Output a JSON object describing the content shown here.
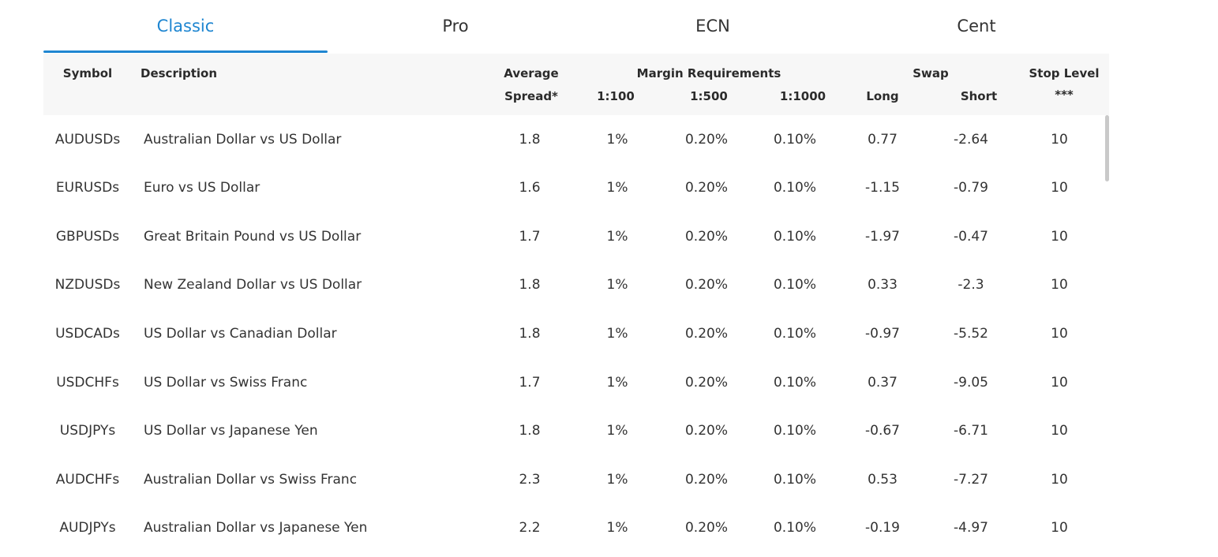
{
  "tabs": [
    "Classic",
    "Pro",
    "ECN",
    "Cent"
  ],
  "active_tab": "Classic",
  "header": {
    "symbol": "Symbol",
    "description": "Description",
    "average": "Average",
    "spread": "Spread*",
    "margin": "Margin Requirements",
    "m100": "1:100",
    "m500": "1:500",
    "m1000": "1:1000",
    "swap": "Swap",
    "long": "Long",
    "short": "Short",
    "stop_level": "Stop Level",
    "stop_note": "***"
  },
  "rows": [
    {
      "symbol": "AUDUSDs",
      "description": "Australian Dollar vs US Dollar",
      "spread": "1.8",
      "m100": "1%",
      "m500": "0.20%",
      "m1000": "0.10%",
      "long": "0.77",
      "short": "-2.64",
      "stop": "10"
    },
    {
      "symbol": "EURUSDs",
      "description": "Euro vs US Dollar",
      "spread": "1.6",
      "m100": "1%",
      "m500": "0.20%",
      "m1000": "0.10%",
      "long": "-1.15",
      "short": "-0.79",
      "stop": "10"
    },
    {
      "symbol": "GBPUSDs",
      "description": "Great Britain Pound vs US Dollar",
      "spread": "1.7",
      "m100": "1%",
      "m500": "0.20%",
      "m1000": "0.10%",
      "long": "-1.97",
      "short": "-0.47",
      "stop": "10"
    },
    {
      "symbol": "NZDUSDs",
      "description": "New Zealand Dollar vs US Dollar",
      "spread": "1.8",
      "m100": "1%",
      "m500": "0.20%",
      "m1000": "0.10%",
      "long": "0.33",
      "short": "-2.3",
      "stop": "10"
    },
    {
      "symbol": "USDCADs",
      "description": "US Dollar vs Canadian Dollar",
      "spread": "1.8",
      "m100": "1%",
      "m500": "0.20%",
      "m1000": "0.10%",
      "long": "-0.97",
      "short": "-5.52",
      "stop": "10"
    },
    {
      "symbol": "USDCHFs",
      "description": "US Dollar vs Swiss Franc",
      "spread": "1.7",
      "m100": "1%",
      "m500": "0.20%",
      "m1000": "0.10%",
      "long": "0.37",
      "short": "-9.05",
      "stop": "10"
    },
    {
      "symbol": "USDJPYs",
      "description": "US Dollar vs Japanese Yen",
      "spread": "1.8",
      "m100": "1%",
      "m500": "0.20%",
      "m1000": "0.10%",
      "long": "-0.67",
      "short": "-6.71",
      "stop": "10"
    },
    {
      "symbol": "AUDCHFs",
      "description": "Australian Dollar vs Swiss Franc",
      "spread": "2.3",
      "m100": "1%",
      "m500": "0.20%",
      "m1000": "0.10%",
      "long": "0.53",
      "short": "-7.27",
      "stop": "10"
    },
    {
      "symbol": "AUDJPYs",
      "description": "Australian Dollar vs Japanese Yen",
      "spread": "2.2",
      "m100": "1%",
      "m500": "0.20%",
      "m1000": "0.10%",
      "long": "-0.19",
      "short": "-4.97",
      "stop": "10"
    }
  ],
  "colors": {
    "accent": "#1f86d1",
    "header_bg": "#f7f7f7",
    "text": "#333333"
  }
}
